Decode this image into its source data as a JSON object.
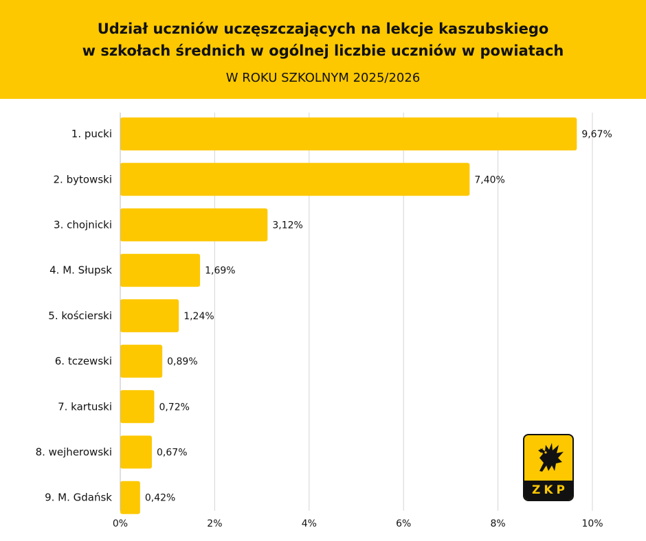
{
  "header": {
    "title": "Udział uczniów uczęszczających na lekcje kaszubskiego\nw szkołach średnich w ogólnej liczbie uczniów w powiatach",
    "subtitle": "W ROKU SZKOLNYM 2025/2026"
  },
  "colors": {
    "accent": "#fdc800",
    "text": "#111111",
    "grid": "#d4d4d4"
  },
  "logo": {
    "text": "ZKP",
    "icon": "griffin-icon"
  },
  "chart_data": {
    "type": "bar",
    "orientation": "horizontal",
    "categories": [
      "1. pucki",
      "2. bytowski",
      "3. chojnicki",
      "4. M. Słupsk",
      "5. kościerski",
      "6. tczewski",
      "7. kartuski",
      "8. wejherowski",
      "9. M. Gdańsk"
    ],
    "values": [
      9.67,
      7.4,
      3.12,
      1.69,
      1.24,
      0.89,
      0.72,
      0.67,
      0.42
    ],
    "value_labels": [
      "9,67%",
      "7,40%",
      "3,12%",
      "1,69%",
      "1,24%",
      "0,89%",
      "0,72%",
      "0,67%",
      "0,42%"
    ],
    "x_ticks": [
      "0%",
      "2%",
      "4%",
      "6%",
      "8%",
      "10%"
    ],
    "xlim": [
      0,
      10
    ],
    "grid": true,
    "legend": "none"
  }
}
